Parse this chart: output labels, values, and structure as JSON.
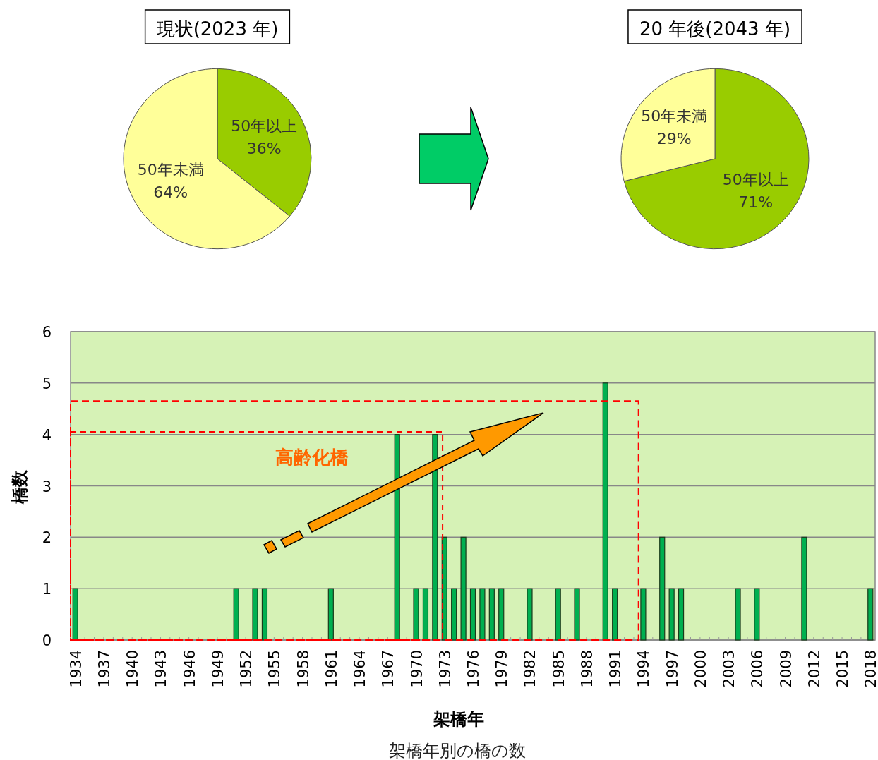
{
  "chart_data": [
    {
      "type": "pie",
      "title": "現状(2023 年)",
      "categories": [
        "50年以上",
        "50年未満"
      ],
      "values": [
        36,
        64
      ],
      "colors": [
        "#99cc00",
        "#ffff99"
      ],
      "value_labels": [
        "36%",
        "64%"
      ]
    },
    {
      "type": "pie",
      "title": "20 年後(2043 年)",
      "categories": [
        "50年以上",
        "50年未満"
      ],
      "values": [
        71,
        29
      ],
      "colors": [
        "#99cc00",
        "#ffff99"
      ],
      "value_labels": [
        "71%",
        "29%"
      ]
    },
    {
      "type": "bar",
      "xlabel": "架橋年",
      "ylabel": "橋数",
      "ylim": [
        0,
        6
      ],
      "yticks": [
        0,
        1,
        2,
        3,
        4,
        5,
        6
      ],
      "grid": "y",
      "color": "#00b050",
      "categories": [
        "1934",
        null,
        null,
        "1937",
        null,
        null,
        "1940",
        null,
        null,
        "1943",
        null,
        null,
        "1946",
        null,
        null,
        "1949",
        null,
        null,
        "1952",
        null,
        null,
        "1955",
        null,
        null,
        "1958",
        null,
        null,
        "1961",
        null,
        null,
        "1964",
        null,
        null,
        "1967",
        null,
        null,
        "1970",
        null,
        null,
        "1973",
        null,
        null,
        "1976",
        null,
        null,
        "1979",
        null,
        null,
        "1982",
        null,
        null,
        "1985",
        null,
        null,
        "1988",
        null,
        null,
        "1991",
        null,
        null,
        "1994",
        null,
        null,
        "1997",
        null,
        null,
        "2000",
        null,
        null,
        "2003",
        null,
        null,
        "2006",
        null,
        null,
        "2009",
        null,
        null,
        "2012",
        null,
        null,
        "2015",
        null,
        null,
        "2018"
      ],
      "values": [
        1,
        0,
        0,
        0,
        0,
        0,
        0,
        0,
        0,
        0,
        0,
        0,
        0,
        0,
        0,
        0,
        0,
        1,
        0,
        1,
        1,
        0,
        0,
        0,
        0,
        0,
        0,
        1,
        0,
        0,
        0,
        0,
        0,
        0,
        4,
        0,
        1,
        1,
        4,
        2,
        1,
        2,
        1,
        1,
        1,
        1,
        0,
        0,
        1,
        0,
        0,
        1,
        0,
        1,
        0,
        0,
        5,
        1,
        0,
        0,
        1,
        0,
        2,
        1,
        1,
        0,
        0,
        0,
        0,
        0,
        1,
        0,
        1,
        0,
        0,
        0,
        0,
        2,
        0,
        0,
        0,
        0,
        0,
        0,
        1
      ],
      "annotations": [
        "高齢化橋",
        "架橋年別の橋の数"
      ]
    }
  ]
}
